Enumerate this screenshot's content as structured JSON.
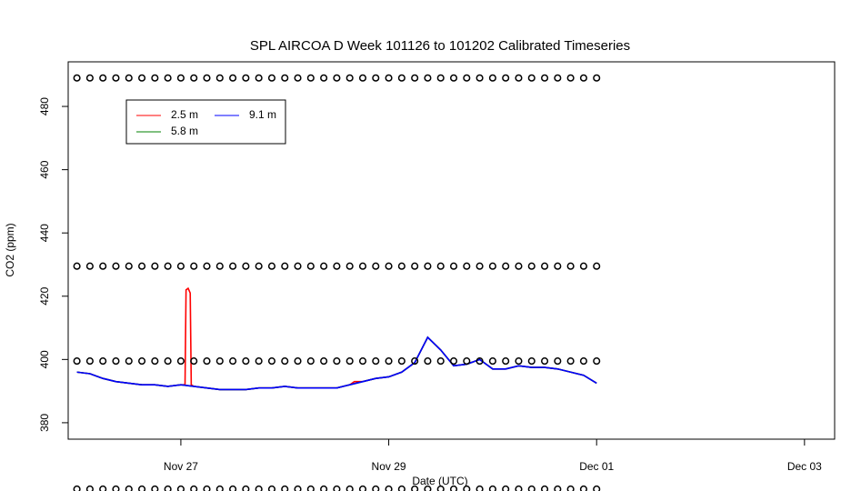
{
  "chart_data": {
    "type": "line",
    "title": "SPL AIRCOA D  Week 101126 to 101202  Calibrated Timeseries",
    "x_label": "Date (UTC)",
    "y_label": "CO2 (ppm)",
    "xlim": [
      25.916,
      33.29
    ],
    "xticks": [
      {
        "value": 27,
        "label": "Nov 27"
      },
      {
        "value": 29,
        "label": "Nov 29"
      },
      {
        "value": 31,
        "label": "Dec 01"
      },
      {
        "value": 33,
        "label": "Dec 03"
      }
    ],
    "ylim": [
      374.8,
      494.1
    ],
    "yticks": [
      380,
      400,
      420,
      440,
      460,
      480
    ],
    "grid": false,
    "legend": "topleft",
    "series": [
      {
        "name": "2.5 m",
        "color": "#ff0000",
        "x": [
          26.0,
          26.125,
          26.25,
          26.375,
          26.5,
          26.625,
          26.75,
          26.875,
          27.0,
          27.04,
          27.05,
          27.07,
          27.09,
          27.1,
          27.125,
          27.25,
          27.375,
          27.5,
          27.625,
          27.75,
          27.875,
          28.0,
          28.125,
          28.25,
          28.375,
          28.5,
          28.625,
          28.67,
          28.75,
          28.875,
          29.0,
          29.125,
          29.25,
          29.375,
          29.5,
          29.625,
          29.75,
          29.875,
          30.0,
          30.125,
          30.25,
          30.375,
          30.5,
          30.625,
          30.75,
          30.875,
          31.0
        ],
        "values": [
          396,
          395.5,
          394,
          393,
          392.5,
          392,
          392,
          391.5,
          392,
          392,
          422,
          422.5,
          421,
          392,
          391.5,
          391,
          390.5,
          390.5,
          390.5,
          391,
          391,
          391.5,
          391,
          391,
          391,
          391,
          392,
          393,
          393,
          394,
          394.5,
          396,
          399,
          407,
          403,
          398,
          398.5,
          400,
          397,
          397,
          398,
          397.5,
          397.5,
          397,
          396,
          395,
          392.5
        ]
      },
      {
        "name": "5.8 m",
        "color": "#008000",
        "x": [
          26.0,
          26.125,
          26.25,
          26.375,
          26.5,
          26.625,
          26.75,
          26.875,
          27.0,
          27.125,
          27.25,
          27.375,
          27.5,
          27.625,
          27.75,
          27.875,
          28.0,
          28.125,
          28.25,
          28.375,
          28.5,
          28.625,
          28.75,
          28.875,
          29.0,
          29.125,
          29.25,
          29.375,
          29.5,
          29.625,
          29.75,
          29.875,
          30.0,
          30.125,
          30.25,
          30.375,
          30.5,
          30.625,
          30.75,
          30.875,
          31.0
        ],
        "values": [
          396,
          395.5,
          394,
          393,
          392.5,
          392,
          392,
          391.5,
          392,
          391.5,
          391,
          390.5,
          390.5,
          390.5,
          391,
          391,
          391.5,
          391,
          391,
          391,
          391,
          392,
          393,
          394,
          394.5,
          396,
          399,
          407,
          403,
          398,
          398.5,
          400,
          397,
          397,
          398,
          397.5,
          397.5,
          397,
          396,
          395,
          392.5
        ]
      },
      {
        "name": "9.1 m",
        "color": "#0000ff",
        "x": [
          26.0,
          26.125,
          26.25,
          26.375,
          26.5,
          26.625,
          26.75,
          26.875,
          27.0,
          27.125,
          27.25,
          27.375,
          27.5,
          27.625,
          27.75,
          27.875,
          28.0,
          28.125,
          28.25,
          28.375,
          28.5,
          28.625,
          28.75,
          28.875,
          29.0,
          29.125,
          29.25,
          29.375,
          29.5,
          29.625,
          29.75,
          29.875,
          30.0,
          30.125,
          30.25,
          30.375,
          30.5,
          30.625,
          30.75,
          30.875,
          31.0
        ],
        "values": [
          396,
          395.5,
          394,
          393,
          392.5,
          392,
          392,
          391.5,
          392,
          391.5,
          391,
          390.5,
          390.5,
          390.5,
          391,
          391,
          391.5,
          391,
          391,
          391,
          391,
          392,
          393,
          394,
          394.5,
          396,
          399,
          407,
          403,
          398,
          398.5,
          400,
          397,
          397,
          398,
          397.5,
          397.5,
          397,
          396,
          395,
          392.5
        ]
      }
    ],
    "calibration": {
      "x": [
        26.0,
        26.125,
        26.25,
        26.375,
        26.5,
        26.625,
        26.75,
        26.875,
        27.0,
        27.125,
        27.25,
        27.375,
        27.5,
        27.625,
        27.75,
        27.875,
        28.0,
        28.125,
        28.25,
        28.375,
        28.5,
        28.625,
        28.75,
        28.875,
        29.0,
        29.125,
        29.25,
        29.375,
        29.5,
        29.625,
        29.75,
        29.875,
        30.0,
        30.125,
        30.25,
        30.375,
        30.5,
        30.625,
        30.75,
        30.875,
        31.0
      ],
      "levels": [
        359,
        399.5,
        429.5,
        489
      ]
    }
  }
}
